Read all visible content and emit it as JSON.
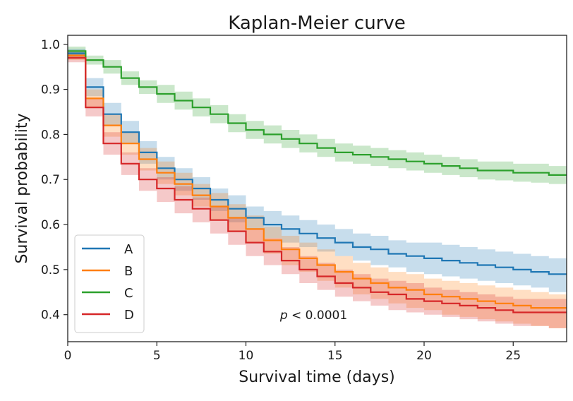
{
  "chart_data": {
    "type": "line",
    "subtype": "kaplan-meier step survival curves with confidence bands",
    "title": "Kaplan-Meier curve",
    "xlabel": "Survival time (days)",
    "ylabel": "Survival probability",
    "xlim": [
      0,
      28
    ],
    "ylim": [
      0.34,
      1.02
    ],
    "xticks": [
      0,
      5,
      10,
      15,
      20,
      25
    ],
    "yticks": [
      0.4,
      0.5,
      0.6,
      0.7,
      0.8,
      0.9,
      1.0
    ],
    "ytick_labels": [
      "0.4",
      "0.5",
      "0.6",
      "0.7",
      "0.8",
      "0.9",
      "1.0"
    ],
    "grid": false,
    "legend_position": "lower-left",
    "annotation": {
      "italic_part": "p",
      "rest": " < 0.0001",
      "x": 13.8,
      "y": 0.39
    },
    "series": [
      {
        "name": "A",
        "color": "#1f77b4",
        "t": [
          0,
          1,
          2,
          3,
          4,
          5,
          6,
          7,
          8,
          9,
          10,
          11,
          12,
          13,
          14,
          15,
          16,
          17,
          18,
          19,
          20,
          21,
          22,
          23,
          24,
          25,
          26,
          27
        ],
        "s": [
          0.98,
          0.905,
          0.845,
          0.805,
          0.76,
          0.725,
          0.7,
          0.68,
          0.655,
          0.635,
          0.615,
          0.6,
          0.59,
          0.58,
          0.57,
          0.56,
          0.55,
          0.545,
          0.535,
          0.53,
          0.525,
          0.52,
          0.515,
          0.51,
          0.505,
          0.5,
          0.495,
          0.49
        ],
        "lo": [
          0.97,
          0.885,
          0.82,
          0.78,
          0.735,
          0.7,
          0.675,
          0.655,
          0.63,
          0.605,
          0.59,
          0.57,
          0.56,
          0.55,
          0.54,
          0.53,
          0.52,
          0.51,
          0.505,
          0.495,
          0.49,
          0.485,
          0.48,
          0.475,
          0.47,
          0.465,
          0.46,
          0.45
        ],
        "hi": [
          0.99,
          0.925,
          0.87,
          0.83,
          0.785,
          0.75,
          0.725,
          0.705,
          0.68,
          0.665,
          0.64,
          0.63,
          0.62,
          0.61,
          0.6,
          0.59,
          0.58,
          0.575,
          0.565,
          0.56,
          0.56,
          0.555,
          0.55,
          0.545,
          0.54,
          0.535,
          0.53,
          0.525
        ]
      },
      {
        "name": "B",
        "color": "#ff7f0e",
        "t": [
          0,
          1,
          2,
          3,
          4,
          5,
          6,
          7,
          8,
          9,
          10,
          11,
          12,
          13,
          14,
          15,
          16,
          17,
          18,
          19,
          20,
          21,
          22,
          23,
          24,
          25,
          26,
          27
        ],
        "s": [
          0.975,
          0.88,
          0.82,
          0.78,
          0.745,
          0.715,
          0.69,
          0.665,
          0.64,
          0.615,
          0.59,
          0.565,
          0.545,
          0.525,
          0.51,
          0.495,
          0.48,
          0.47,
          0.46,
          0.455,
          0.445,
          0.44,
          0.435,
          0.43,
          0.425,
          0.42,
          0.415,
          0.415
        ],
        "lo": [
          0.965,
          0.86,
          0.795,
          0.755,
          0.72,
          0.69,
          0.665,
          0.64,
          0.61,
          0.585,
          0.56,
          0.535,
          0.51,
          0.495,
          0.475,
          0.46,
          0.445,
          0.435,
          0.425,
          0.415,
          0.41,
          0.4,
          0.395,
          0.39,
          0.385,
          0.38,
          0.375,
          0.37
        ],
        "hi": [
          0.985,
          0.9,
          0.845,
          0.805,
          0.77,
          0.74,
          0.715,
          0.69,
          0.67,
          0.645,
          0.62,
          0.595,
          0.575,
          0.56,
          0.545,
          0.53,
          0.515,
          0.505,
          0.495,
          0.49,
          0.48,
          0.475,
          0.47,
          0.465,
          0.46,
          0.455,
          0.45,
          0.445
        ]
      },
      {
        "name": "C",
        "color": "#2ca02c",
        "t": [
          0,
          1,
          2,
          3,
          4,
          5,
          6,
          7,
          8,
          9,
          10,
          11,
          12,
          13,
          14,
          15,
          16,
          17,
          18,
          19,
          20,
          21,
          22,
          23,
          24,
          25,
          26,
          27
        ],
        "s": [
          0.985,
          0.965,
          0.95,
          0.925,
          0.905,
          0.89,
          0.875,
          0.86,
          0.845,
          0.825,
          0.81,
          0.8,
          0.79,
          0.78,
          0.77,
          0.76,
          0.755,
          0.75,
          0.745,
          0.74,
          0.735,
          0.73,
          0.725,
          0.72,
          0.72,
          0.715,
          0.715,
          0.71
        ],
        "lo": [
          0.975,
          0.955,
          0.935,
          0.91,
          0.89,
          0.87,
          0.855,
          0.84,
          0.825,
          0.805,
          0.79,
          0.78,
          0.77,
          0.76,
          0.75,
          0.74,
          0.735,
          0.73,
          0.725,
          0.72,
          0.715,
          0.71,
          0.705,
          0.7,
          0.698,
          0.695,
          0.693,
          0.69
        ],
        "hi": [
          0.995,
          0.975,
          0.965,
          0.94,
          0.92,
          0.91,
          0.895,
          0.88,
          0.865,
          0.845,
          0.83,
          0.82,
          0.81,
          0.8,
          0.79,
          0.78,
          0.775,
          0.77,
          0.765,
          0.76,
          0.755,
          0.75,
          0.745,
          0.74,
          0.74,
          0.735,
          0.735,
          0.73
        ]
      },
      {
        "name": "D",
        "color": "#d62728",
        "t": [
          0,
          1,
          2,
          3,
          4,
          5,
          6,
          7,
          8,
          9,
          10,
          11,
          12,
          13,
          14,
          15,
          16,
          17,
          18,
          19,
          20,
          21,
          22,
          23,
          24,
          25,
          26,
          27
        ],
        "s": [
          0.97,
          0.86,
          0.78,
          0.735,
          0.7,
          0.68,
          0.655,
          0.635,
          0.61,
          0.585,
          0.56,
          0.54,
          0.52,
          0.5,
          0.485,
          0.47,
          0.46,
          0.45,
          0.445,
          0.435,
          0.43,
          0.425,
          0.42,
          0.415,
          0.41,
          0.405,
          0.405,
          0.405
        ],
        "lo": [
          0.96,
          0.84,
          0.755,
          0.71,
          0.675,
          0.65,
          0.625,
          0.605,
          0.58,
          0.555,
          0.53,
          0.51,
          0.49,
          0.47,
          0.455,
          0.44,
          0.43,
          0.42,
          0.41,
          0.405,
          0.4,
          0.395,
          0.39,
          0.385,
          0.38,
          0.375,
          0.375,
          0.37
        ],
        "hi": [
          0.98,
          0.88,
          0.805,
          0.76,
          0.725,
          0.705,
          0.685,
          0.66,
          0.64,
          0.615,
          0.59,
          0.57,
          0.55,
          0.53,
          0.515,
          0.5,
          0.49,
          0.48,
          0.475,
          0.47,
          0.46,
          0.455,
          0.45,
          0.445,
          0.44,
          0.435,
          0.435,
          0.435
        ]
      }
    ]
  }
}
